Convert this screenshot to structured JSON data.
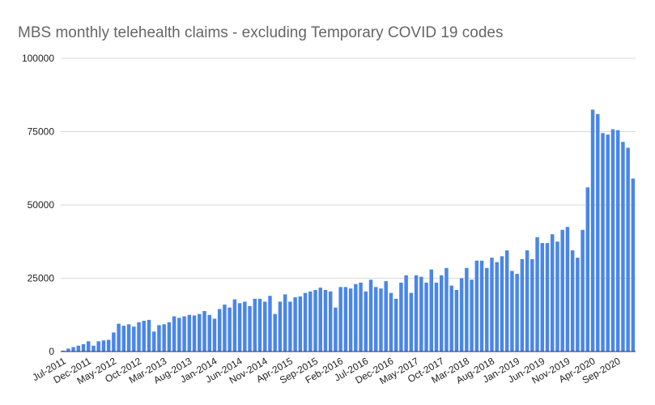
{
  "chart_data": {
    "type": "bar",
    "title": "MBS monthly telehealth claims - excluding Temporary COVID 19 codes",
    "categories": [
      "Jul-2011",
      null,
      null,
      null,
      null,
      "Dec-2011",
      null,
      null,
      null,
      null,
      "May-2012",
      null,
      null,
      null,
      null,
      "Oct-2012",
      null,
      null,
      null,
      null,
      "Mar-2013",
      null,
      null,
      null,
      null,
      "Aug-2013",
      null,
      null,
      null,
      null,
      "Jan-2014",
      null,
      null,
      null,
      null,
      "Jun-2014",
      null,
      null,
      null,
      null,
      "Nov-2014",
      null,
      null,
      null,
      null,
      "Apr-2015",
      null,
      null,
      null,
      null,
      "Sep-2015",
      null,
      null,
      null,
      null,
      "Feb-2016",
      null,
      null,
      null,
      null,
      "Jul-2016",
      null,
      null,
      null,
      null,
      "Dec-2016",
      null,
      null,
      null,
      null,
      "May-2017",
      null,
      null,
      null,
      null,
      "Oct-2017",
      null,
      null,
      null,
      null,
      "Mar-2018",
      null,
      null,
      null,
      null,
      "Aug-2018",
      null,
      null,
      null,
      null,
      "Jan-2019",
      null,
      null,
      null,
      null,
      "Jun-2019",
      null,
      null,
      null,
      null,
      "Nov-2019",
      null,
      null,
      null,
      null,
      "Apr-2020",
      null,
      null,
      null,
      null,
      "Sep-2020",
      null,
      null,
      null
    ],
    "values": [
      300,
      1000,
      1500,
      2000,
      2500,
      3500,
      2000,
      3500,
      3800,
      4000,
      6500,
      9500,
      8800,
      9300,
      8500,
      10000,
      10500,
      10800,
      6800,
      9000,
      9300,
      10000,
      12000,
      11500,
      12000,
      12500,
      12300,
      12800,
      13800,
      12500,
      11200,
      14500,
      16000,
      15000,
      17800,
      16500,
      17000,
      15500,
      18000,
      18000,
      17000,
      19000,
      12800,
      17000,
      19500,
      17000,
      18500,
      18800,
      20000,
      20500,
      21000,
      21800,
      21000,
      20500,
      15000,
      22000,
      22000,
      21500,
      23000,
      23500,
      20500,
      24500,
      22000,
      21500,
      24000,
      20000,
      18000,
      23500,
      26000,
      20000,
      26000,
      25500,
      23500,
      28000,
      23500,
      26000,
      28500,
      22500,
      21000,
      25000,
      28500,
      24500,
      31000,
      31000,
      28500,
      32000,
      30500,
      32500,
      34500,
      27500,
      26500,
      31500,
      34500,
      31500,
      39000,
      37000,
      37000,
      40000,
      37500,
      41500,
      42500,
      34500,
      32000,
      41500,
      56000,
      82500,
      81000,
      74500,
      74000,
      75800,
      75500,
      71500,
      69500,
      59000
    ],
    "color": "#4a86e8",
    "ylim": [
      0,
      100000
    ],
    "yticks": [
      0,
      25000,
      50000,
      75000,
      100000
    ],
    "grid": true
  }
}
